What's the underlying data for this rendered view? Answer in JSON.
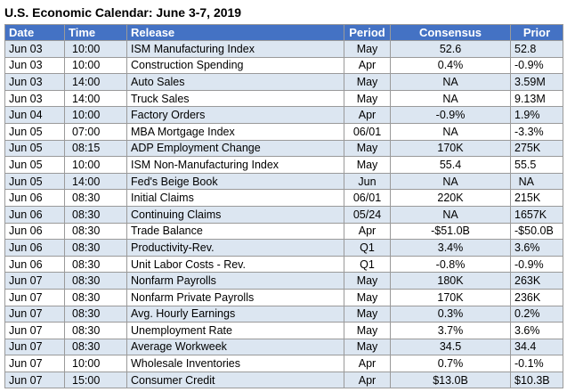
{
  "title": "U.S. Economic Calendar: June 3-7, 2019",
  "table": {
    "columns": [
      "Date",
      "Time",
      "Release",
      "Period",
      "Consensus",
      "Prior"
    ],
    "rows": [
      [
        "Jun 03",
        "10:00",
        "ISM Manufacturing Index",
        "May",
        "52.6",
        "52.8"
      ],
      [
        "Jun 03",
        "10:00",
        "Construction Spending",
        "Apr",
        "0.4%",
        "-0.9%"
      ],
      [
        "Jun 03",
        "14:00",
        "Auto Sales",
        "May",
        "NA",
        "3.59M"
      ],
      [
        "Jun 03",
        "14:00",
        "Truck Sales",
        "May",
        "NA",
        "9.13M"
      ],
      [
        "Jun 04",
        "10:00",
        "Factory Orders",
        "Apr",
        "-0.9%",
        "1.9%"
      ],
      [
        "Jun 05",
        "07:00",
        "MBA Mortgage Index",
        "06/01",
        "NA",
        "-3.3%"
      ],
      [
        "Jun 05",
        "08:15",
        "ADP Employment Change",
        "May",
        "170K",
        "275K"
      ],
      [
        "Jun 05",
        "10:00",
        "ISM Non-Manufacturing Index",
        "May",
        "55.4",
        "55.5"
      ],
      [
        "Jun 05",
        "14:00",
        "Fed's Beige Book",
        "Jun",
        "NA",
        "NA"
      ],
      [
        "Jun 06",
        "08:30",
        "Initial Claims",
        "06/01",
        "220K",
        "215K"
      ],
      [
        "Jun 06",
        "08:30",
        "Continuing Claims",
        "05/24",
        "NA",
        "1657K"
      ],
      [
        "Jun 06",
        "08:30",
        "Trade Balance",
        "Apr",
        "-$51.0B",
        "-$50.0B"
      ],
      [
        "Jun 06",
        "08:30",
        "Productivity-Rev.",
        "Q1",
        "3.4%",
        "3.6%"
      ],
      [
        "Jun 06",
        "08:30",
        "Unit Labor Costs - Rev.",
        "Q1",
        "-0.8%",
        "-0.9%"
      ],
      [
        "Jun 07",
        "08:30",
        "Nonfarm Payrolls",
        "May",
        "180K",
        "263K"
      ],
      [
        "Jun 07",
        "08:30",
        "Nonfarm Private Payrolls",
        "May",
        "170K",
        "236K"
      ],
      [
        "Jun 07",
        "08:30",
        "Avg. Hourly Earnings",
        "May",
        "0.3%",
        "0.2%"
      ],
      [
        "Jun 07",
        "08:30",
        "Unemployment Rate",
        "May",
        "3.7%",
        "3.6%"
      ],
      [
        "Jun 07",
        "08:30",
        "Average Workweek",
        "May",
        "34.5",
        "34.4"
      ],
      [
        "Jun 07",
        "10:00",
        "Wholesale Inventories",
        "Apr",
        "0.7%",
        "-0.1%"
      ],
      [
        "Jun 07",
        "15:00",
        "Consumer Credit",
        "Apr",
        "$13.0B",
        "$10.3B"
      ]
    ]
  }
}
